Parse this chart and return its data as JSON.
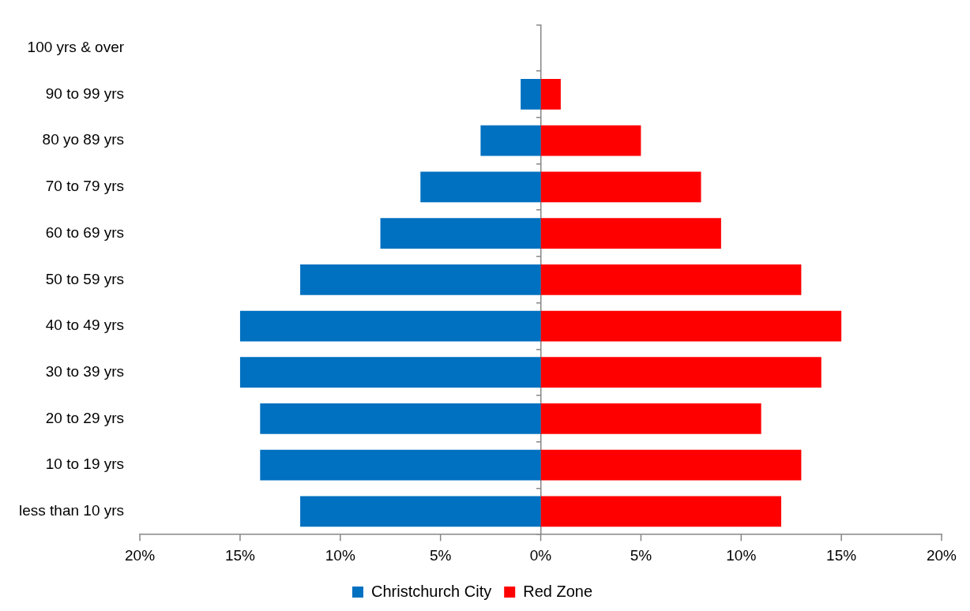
{
  "chart_data": {
    "type": "bar",
    "orientation": "horizontal",
    "stacked": true,
    "categories": [
      "100 yrs & over",
      "90 to 99 yrs",
      "80 yo 89 yrs",
      "70 to 79 yrs",
      "60 to 69 yrs",
      "50 to 59 yrs",
      "40 to 49 yrs",
      "30 to 39 yrs",
      "20 to 29 yrs",
      "10 to 19 yrs",
      "less than 10 yrs"
    ],
    "series": [
      {
        "name": "Christchurch City",
        "color": "#0070c0",
        "values": [
          0,
          -1,
          -3,
          -6,
          -8,
          -12,
          -15,
          -15,
          -14,
          -14,
          -12
        ]
      },
      {
        "name": "Red Zone",
        "color": "#ff0000",
        "values": [
          0,
          1,
          5,
          8,
          9,
          13,
          15,
          14,
          11,
          13,
          12
        ]
      }
    ],
    "xlim": [
      -20,
      20
    ],
    "xticks": [
      {
        "value": -20,
        "label": "20%"
      },
      {
        "value": -15,
        "label": "15%"
      },
      {
        "value": -10,
        "label": "10%"
      },
      {
        "value": -5,
        "label": "5%"
      },
      {
        "value": 0,
        "label": "0%"
      },
      {
        "value": 5,
        "label": "5%"
      },
      {
        "value": 10,
        "label": "10%"
      },
      {
        "value": 15,
        "label": "15%"
      },
      {
        "value": 20,
        "label": "20%"
      }
    ],
    "ref_lines": [
      {
        "axis": "x",
        "value": 0,
        "color": "#868686"
      }
    ],
    "grid": false,
    "legend": "bottom"
  }
}
